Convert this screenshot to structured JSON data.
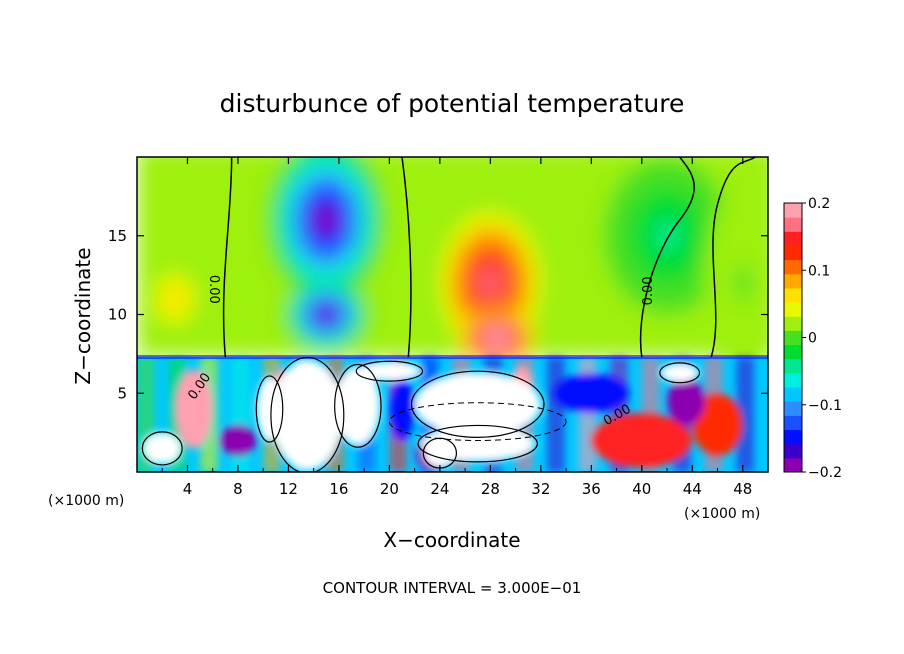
{
  "chart_data": {
    "type": "heatmap",
    "title": "disturbunce of potential temperature",
    "xlabel": "X−coordinate",
    "ylabel": "Z−coordinate",
    "x_unit": "(×1000 m)",
    "x_unit_right": "(×1000 m)",
    "footer": "CONTOUR INTERVAL = 3.000E−01",
    "xlim": [
      0,
      50
    ],
    "ylim": [
      0,
      20
    ],
    "xticks": [
      "4",
      "8",
      "12",
      "16",
      "20",
      "24",
      "28",
      "32",
      "36",
      "40",
      "44",
      "48"
    ],
    "yticks": [
      "5",
      "10",
      "15"
    ],
    "colorbar": {
      "range": [
        -0.2,
        0.2
      ],
      "ticks": [
        "0.2",
        "0.1",
        "0",
        "−0.1",
        "−0.2"
      ],
      "colors": [
        "#8b00b0",
        "#3a00cc",
        "#0010ff",
        "#1a50ff",
        "#2f8cff",
        "#00c8ff",
        "#00f0e0",
        "#00e890",
        "#00dd30",
        "#46e020",
        "#9ef010",
        "#e8f800",
        "#ffe000",
        "#ffaa00",
        "#ff6a00",
        "#ff2a00",
        "#ff2020",
        "#ff7080",
        "#ffa0b0"
      ]
    },
    "contour_labels": [
      "0.00",
      "0.00",
      "0.00",
      "0.00"
    ],
    "upper_field": {
      "z_range": [
        7.3,
        20
      ],
      "background": 0.02,
      "features": [
        {
          "x": 15,
          "z": 16,
          "value": -0.19,
          "sx": 4.5,
          "sz": 5
        },
        {
          "x": 15,
          "z": 10,
          "value": -0.2,
          "sx": 3.2,
          "sz": 2.3
        },
        {
          "x": 28,
          "z": 12,
          "value": 0.17,
          "sx": 4,
          "sz": 4.5
        },
        {
          "x": 28.5,
          "z": 8.5,
          "value": 0.22,
          "sx": 3,
          "sz": 1.8
        },
        {
          "x": 3,
          "z": 11,
          "value": 0.07,
          "sx": 2,
          "sz": 2
        },
        {
          "x": 42,
          "z": 15,
          "value": -0.04,
          "sx": 5,
          "sz": 5
        },
        {
          "x": 48,
          "z": 12,
          "value": 0.01,
          "sx": 3,
          "sz": 6
        }
      ]
    },
    "lower_field": {
      "z_range": [
        0,
        7.3
      ],
      "note_values": [
        -0.2,
        0.2
      ],
      "blobs": [
        {
          "x": 13.5,
          "z": 3.6,
          "w": 5.5,
          "h": 7,
          "value": 1.0
        },
        {
          "x": 17.5,
          "z": 4.2,
          "w": 3.5,
          "h": 5,
          "value": 1.0
        },
        {
          "x": 27,
          "z": 4.3,
          "w": 10,
          "h": 4,
          "value": 1.0
        },
        {
          "x": 27,
          "z": 1.8,
          "w": 9,
          "h": 2.2,
          "value": 1.0
        },
        {
          "x": 10.5,
          "z": 4,
          "w": 2,
          "h": 4,
          "value": 1.0
        },
        {
          "x": 24,
          "z": 1.2,
          "w": 2.5,
          "h": 1.8,
          "value": 1.0
        },
        {
          "x": 2,
          "z": 1.5,
          "w": 3,
          "h": 2,
          "value": 1.0
        },
        {
          "x": 20,
          "z": 6.4,
          "w": 5,
          "h": 1.2,
          "value": 1.0
        },
        {
          "x": 43,
          "z": 6.3,
          "w": 3,
          "h": 1.2,
          "value": 1.0
        }
      ],
      "bands": [
        {
          "x": 4.5,
          "z": 4,
          "w": 3,
          "h": 5,
          "value": 0.18
        },
        {
          "x": 11.5,
          "z": 5,
          "w": 1.5,
          "h": 3,
          "value": 0.2
        },
        {
          "x": 30.5,
          "z": 5.2,
          "w": 2,
          "h": 3,
          "value": 0.2
        },
        {
          "x": 40,
          "z": 2,
          "w": 8,
          "h": 3.5,
          "value": 0.15
        },
        {
          "x": 46,
          "z": 3,
          "w": 4,
          "h": 4,
          "value": 0.12
        },
        {
          "x": 23.5,
          "z": 1.2,
          "w": 2.8,
          "h": 2.4,
          "value": -0.2
        },
        {
          "x": 21,
          "z": 4,
          "w": 2,
          "h": 4,
          "value": -0.15
        },
        {
          "x": 36,
          "z": 5,
          "w": 6,
          "h": 2.5,
          "value": -0.15
        },
        {
          "x": 43.5,
          "z": 4.5,
          "w": 3,
          "h": 3,
          "value": -0.2
        },
        {
          "x": 8,
          "z": 2,
          "w": 3,
          "h": 2,
          "value": -0.18
        }
      ]
    }
  }
}
